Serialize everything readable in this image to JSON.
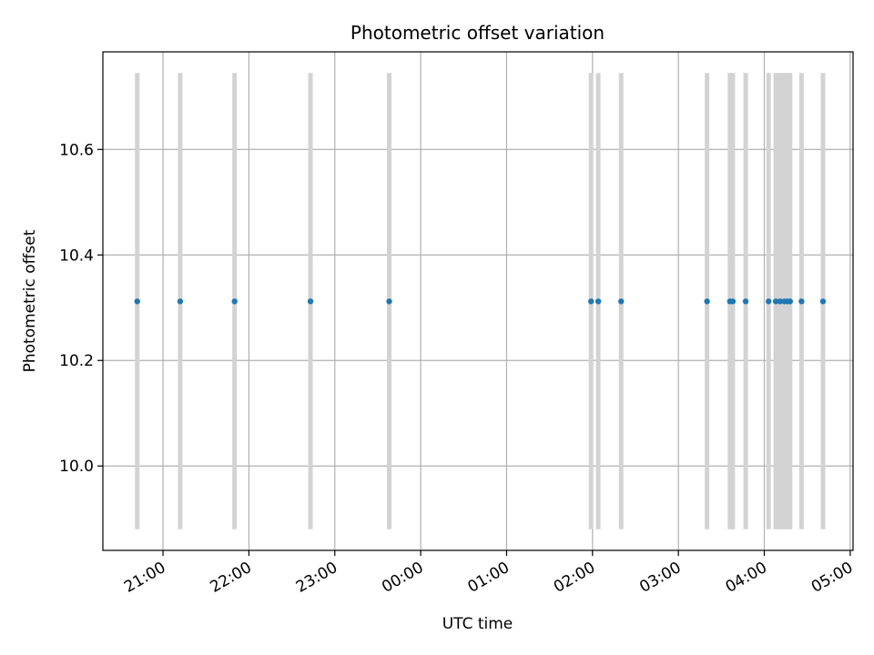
{
  "chart_data": {
    "type": "scatter",
    "title": "Photometric offset variation",
    "xlabel": "UTC time",
    "ylabel": "Photometric offset",
    "xlim": [
      "20:18",
      "05:02"
    ],
    "ylim": [
      9.84,
      10.785
    ],
    "grid": true,
    "x_ticks": [
      "21:00",
      "22:00",
      "23:00",
      "00:00",
      "01:00",
      "02:00",
      "03:00",
      "04:00",
      "05:00"
    ],
    "y_ticks": [
      10.0,
      10.2,
      10.4,
      10.6
    ],
    "y_tick_labels": [
      "10.0",
      "10.2",
      "10.4",
      "10.6"
    ],
    "error_range": [
      9.88,
      10.745
    ],
    "colors": {
      "points": "#1f77b4",
      "error_bars": "#d3d3d3",
      "grid": "#b0b0b0"
    },
    "series": [
      {
        "x": [
          "20:42",
          "21:12",
          "21:50",
          "22:43",
          "23:38",
          "01:59",
          "02:04",
          "02:20",
          "03:20",
          "03:36",
          "03:38",
          "03:47",
          "04:03",
          "04:08",
          "04:11",
          "04:14",
          "04:16",
          "04:18",
          "04:26",
          "04:41"
        ],
        "y": [
          10.312,
          10.312,
          10.312,
          10.312,
          10.312,
          10.312,
          10.312,
          10.312,
          10.312,
          10.312,
          10.312,
          10.312,
          10.312,
          10.312,
          10.312,
          10.312,
          10.312,
          10.312,
          10.312,
          10.312
        ]
      }
    ]
  }
}
